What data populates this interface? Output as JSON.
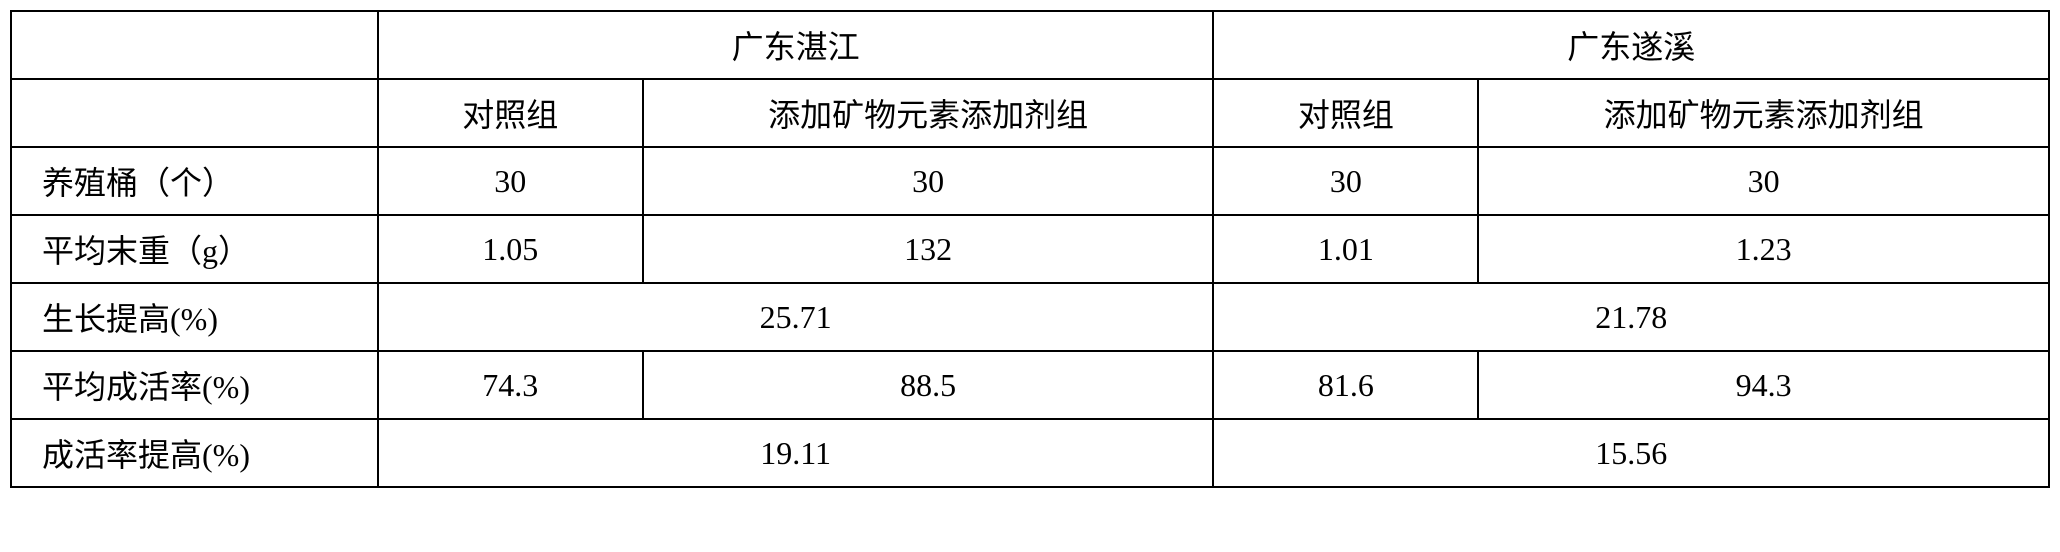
{
  "table": {
    "type": "table",
    "background_color": "#ffffff",
    "border_color": "#000000",
    "font_size": 32,
    "header_row1": {
      "col1": "",
      "loc1": "广东湛江",
      "loc2": "广东遂溪"
    },
    "header_row2": {
      "col1": "",
      "loc1_sub1": "对照组",
      "loc1_sub2": "添加矿物元素添加剂组",
      "loc2_sub1": "对照组",
      "loc2_sub2": "添加矿物元素添加剂组"
    },
    "rows": [
      {
        "label": "养殖桶（个）",
        "loc1_sub1": "30",
        "loc1_sub2": "30",
        "loc2_sub1": "30",
        "loc2_sub2": "30",
        "merged": false
      },
      {
        "label": "平均末重（g）",
        "loc1_sub1": "1.05",
        "loc1_sub2": "132",
        "loc2_sub1": "1.01",
        "loc2_sub2": "1.23",
        "merged": false
      },
      {
        "label": "生长提高(%)",
        "loc1_merged": "25.71",
        "loc2_merged": "21.78",
        "merged": true
      },
      {
        "label": "平均成活率(%)",
        "loc1_sub1": "74.3",
        "loc1_sub2": "88.5",
        "loc2_sub1": "81.6",
        "loc2_sub2": "94.3",
        "merged": false
      },
      {
        "label": "成活率提高(%)",
        "loc1_merged": "19.11",
        "loc2_merged": "15.56",
        "merged": true
      }
    ],
    "column_widths": [
      "18%",
      "13%",
      "28%",
      "13%",
      "28%"
    ]
  }
}
